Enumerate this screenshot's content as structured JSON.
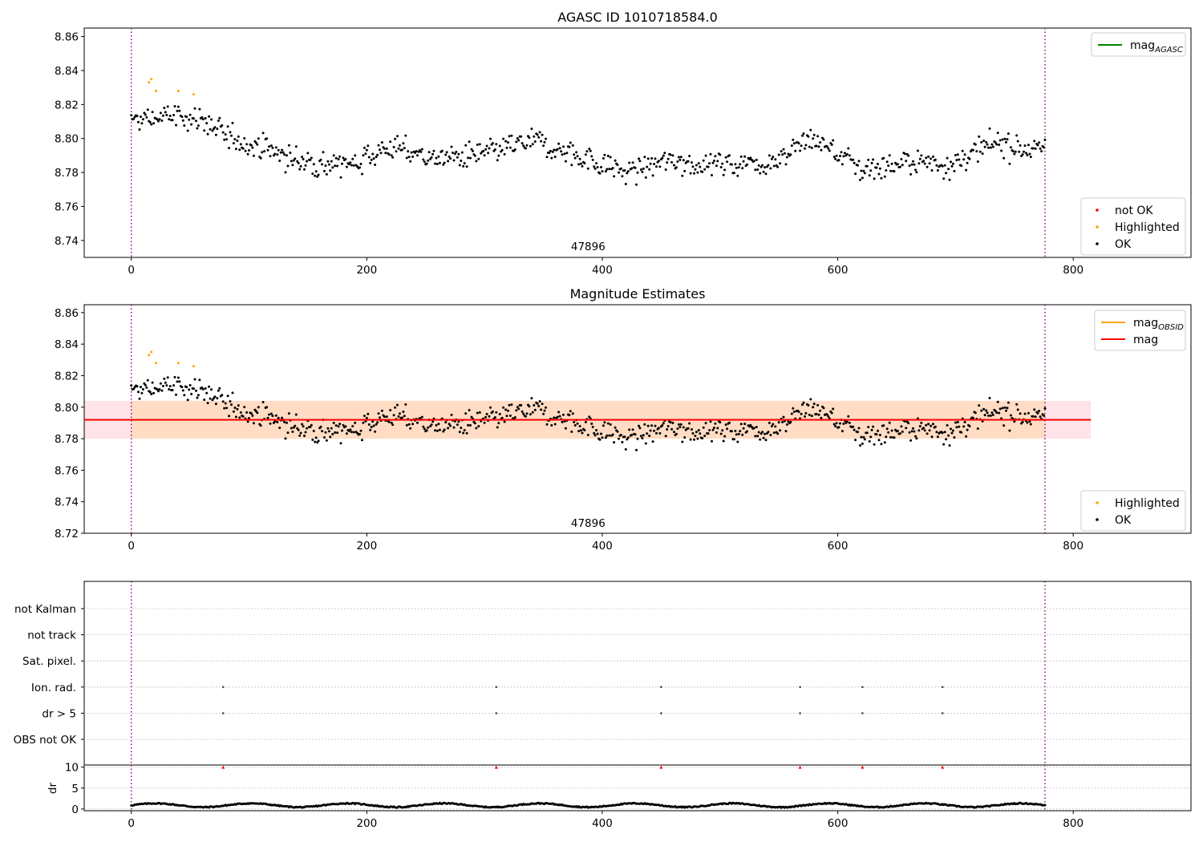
{
  "figure": {
    "title": "AGASC ID 1010718584.0",
    "subtitle": "Magnitude Estimates"
  },
  "colors": {
    "ok": "#000000",
    "highlighted": "#ffa500",
    "not_ok": "#ff0000",
    "mag_agasc": "#008000",
    "mag_obsid": "#ffa500",
    "mag": "#ff0000",
    "band_outer": "#ffc0cb",
    "band_inner": "#ffdab9",
    "obs_boundary": "#800080"
  },
  "chart_data": [
    {
      "type": "scatter",
      "title": "AGASC ID 1010718584.0",
      "xlim": [
        -40,
        900
      ],
      "ylim": [
        8.73,
        8.865
      ],
      "xticks": [
        0,
        200,
        400,
        600,
        800
      ],
      "yticks": [
        8.74,
        8.76,
        8.78,
        8.8,
        8.82,
        8.84,
        8.86
      ],
      "obs_boundaries": [
        0,
        776
      ],
      "obs_label": {
        "x": 388,
        "text": "47896"
      },
      "legend_top": {
        "placement": "top-right",
        "entries": [
          {
            "name": "mag",
            "subscript": "AGASC",
            "color": "#008000"
          }
        ]
      },
      "legend_bottom": {
        "placement": "bottom-right",
        "entries": [
          {
            "name": "not OK",
            "color": "#ff0000"
          },
          {
            "name": "Highlighted",
            "color": "#ffa500"
          },
          {
            "name": "OK",
            "color": "#000000"
          }
        ]
      },
      "series": [
        {
          "name": "Highlighted",
          "x": [
            15,
            17,
            21,
            40,
            53
          ],
          "y": [
            8.833,
            8.835,
            8.828,
            8.828,
            8.826
          ]
        },
        {
          "name": "OK",
          "x": [],
          "y": []
        }
      ],
      "ok_profile": {
        "x": [
          0,
          30,
          60,
          80,
          100,
          140,
          180,
          220,
          260,
          300,
          340,
          380,
          420,
          460,
          500,
          540,
          580,
          620,
          660,
          700,
          740,
          776
        ],
        "y": [
          8.81,
          8.813,
          8.812,
          8.8,
          8.798,
          8.787,
          8.784,
          8.795,
          8.788,
          8.79,
          8.798,
          8.79,
          8.78,
          8.787,
          8.785,
          8.786,
          8.8,
          8.782,
          8.786,
          8.786,
          8.798,
          8.792
        ],
        "scatter": 0.01
      }
    },
    {
      "type": "scatter",
      "title": "Magnitude Estimates",
      "xlim": [
        -40,
        900
      ],
      "ylim": [
        8.72,
        8.865
      ],
      "xticks": [
        0,
        200,
        400,
        600,
        800
      ],
      "yticks": [
        8.72,
        8.74,
        8.76,
        8.78,
        8.8,
        8.82,
        8.84,
        8.86
      ],
      "obs_boundaries": [
        0,
        776
      ],
      "obs_label": {
        "x": 388,
        "text": "47896"
      },
      "mag": 8.792,
      "mag_band_outer": [
        8.78,
        8.804
      ],
      "mag_band_inner": [
        8.78,
        8.804
      ],
      "band_x_outer": [
        -40,
        815
      ],
      "band_x_inner": [
        0,
        776
      ],
      "legend_top": {
        "placement": "top-right",
        "entries": [
          {
            "name": "mag",
            "subscript": "OBSID",
            "color": "#ffa500"
          },
          {
            "name": "mag",
            "subscript": "",
            "color": "#ff0000"
          }
        ]
      },
      "legend_bottom": {
        "placement": "bottom-right",
        "entries": [
          {
            "name": "Highlighted",
            "color": "#ffa500"
          },
          {
            "name": "OK",
            "color": "#000000"
          }
        ]
      },
      "series": [
        {
          "name": "Highlighted",
          "x": [
            15,
            17,
            21,
            40,
            53
          ],
          "y": [
            8.833,
            8.835,
            8.828,
            8.828,
            8.826
          ]
        }
      ]
    },
    {
      "type": "scatter",
      "xlim": [
        -40,
        900
      ],
      "xticks": [
        0,
        200,
        400,
        600,
        800
      ],
      "obs_boundaries": [
        0,
        776
      ],
      "flag_rows": [
        "not Kalman",
        "not track",
        "Sat. pixel.",
        "Ion. rad.",
        "dr > 5",
        "OBS not OK"
      ],
      "flag_points": [
        {
          "flag": "Ion. rad.",
          "x": [
            78,
            310,
            450,
            568,
            621,
            689
          ]
        },
        {
          "flag": "dr > 5",
          "x": [
            78,
            310,
            450,
            568,
            621,
            689
          ]
        }
      ],
      "dr": {
        "ylabel": "dr",
        "ylim": [
          0,
          10
        ],
        "yticks": [
          0,
          5,
          10
        ],
        "clipped_x": [
          78,
          310,
          450,
          568,
          621,
          689
        ],
        "clipped_value": 10,
        "typical": 0.9
      }
    }
  ]
}
